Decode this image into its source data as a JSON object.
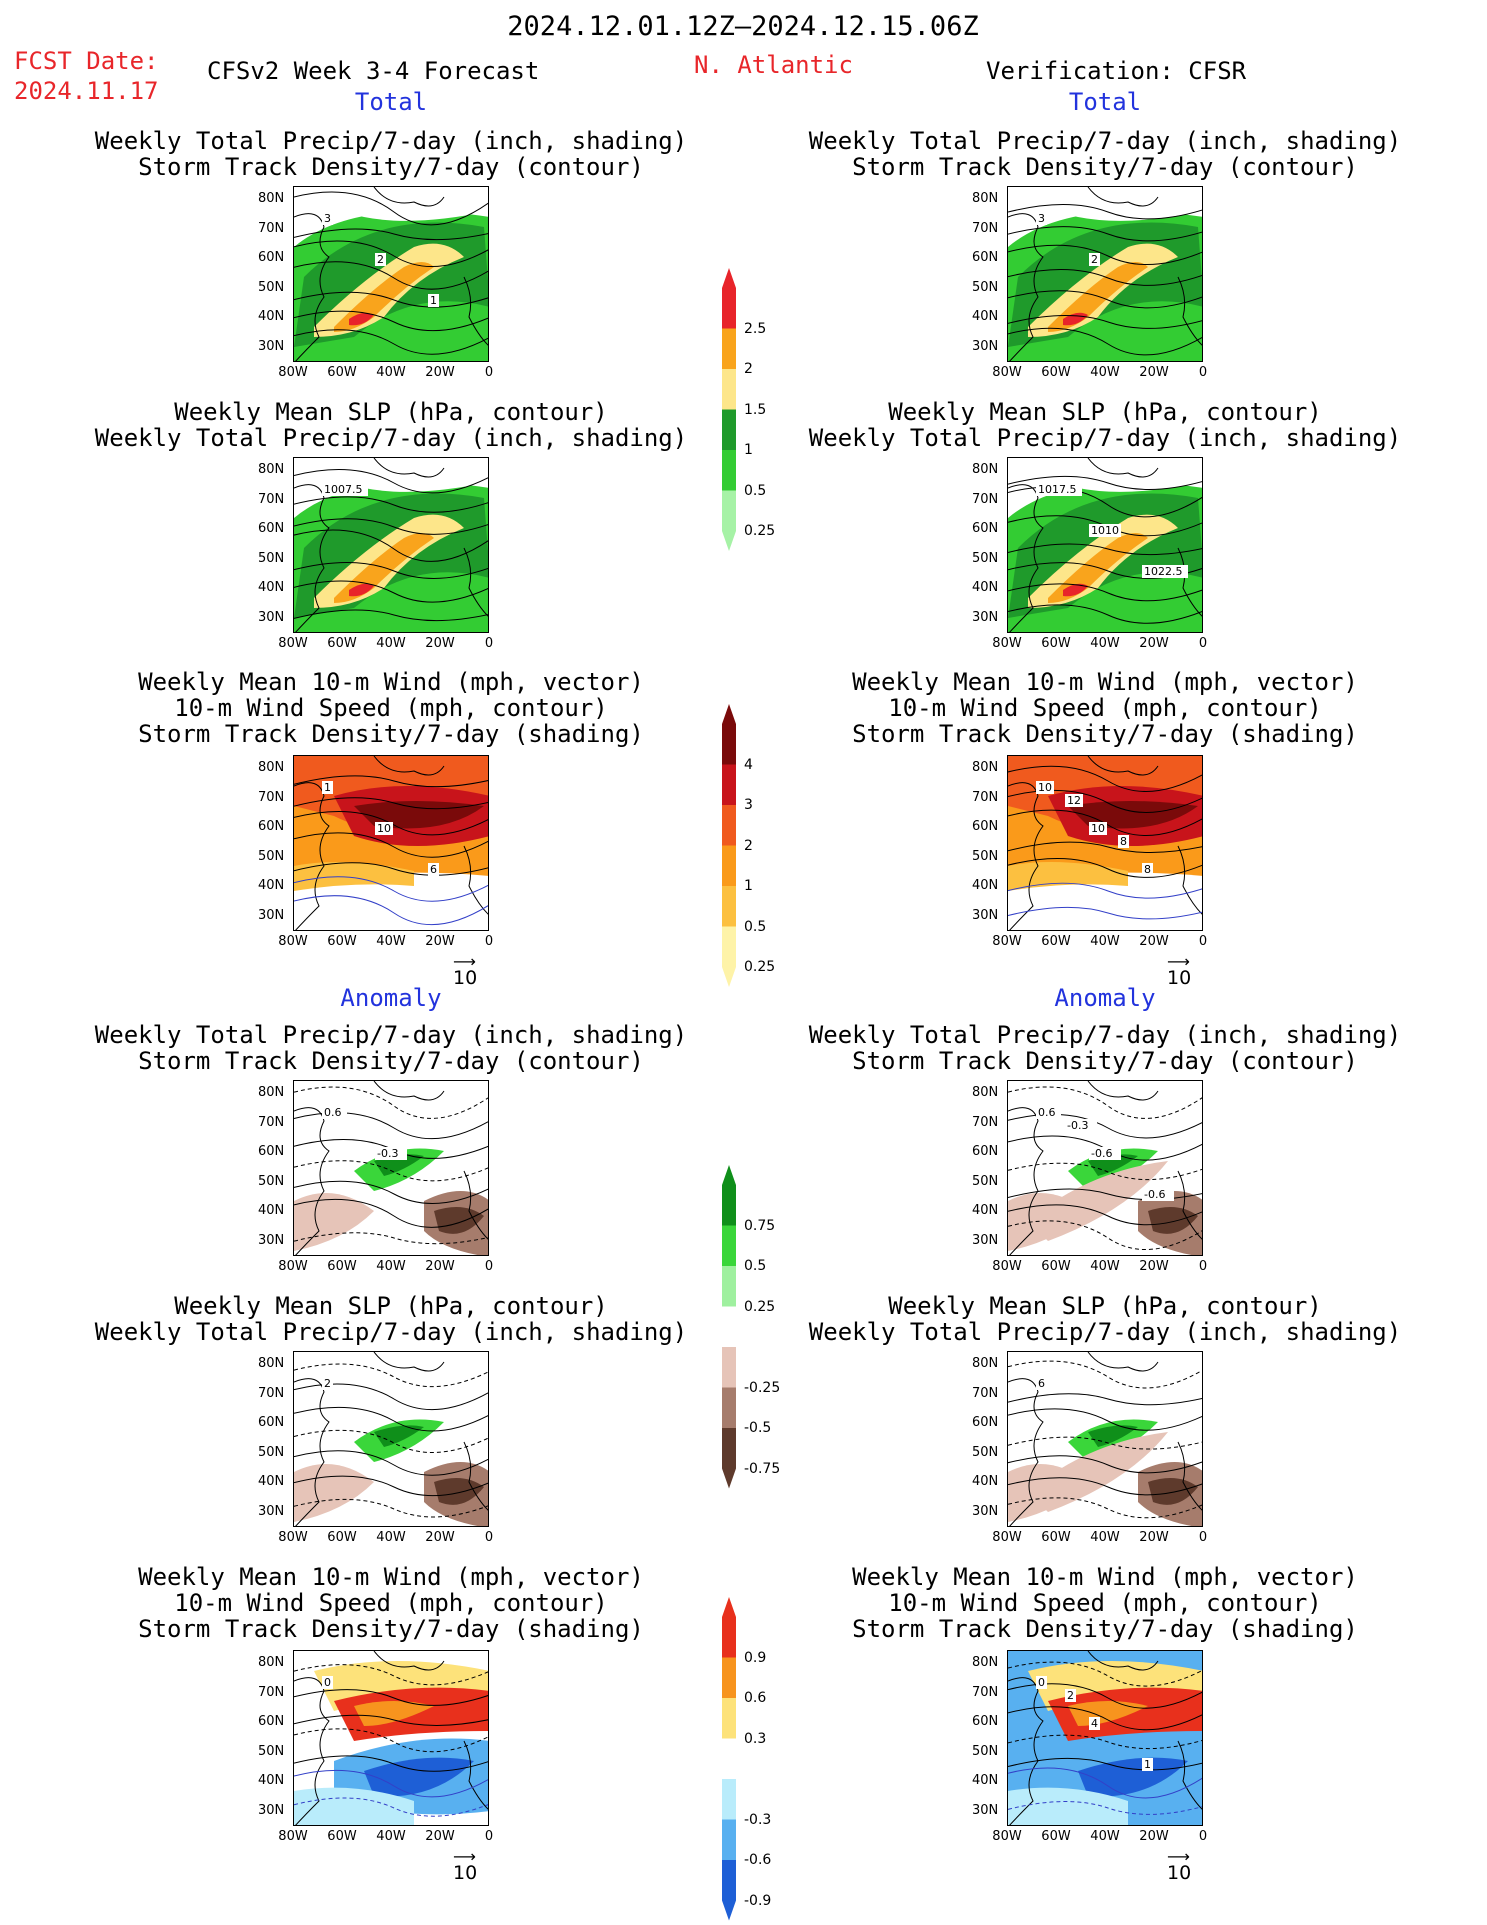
{
  "header": {
    "date_range": "2024.12.01.12Z–2024.12.15.06Z",
    "fcst_label": "FCST Date:",
    "fcst_date": "2024.11.17",
    "model": "CFSv2 Week 3-4 Forecast",
    "region": "N. Atlantic",
    "verification": "Verification: CFSR"
  },
  "sections": {
    "total": "Total",
    "anomaly": "Anomaly"
  },
  "panel_titles": {
    "precip_storm": [
      "Weekly Total Precip/7-day (inch, shading)",
      "Storm Track Density/7-day (contour)"
    ],
    "slp_precip": [
      "Weekly Mean SLP (hPa, contour)",
      "Weekly Total Precip/7-day (inch, shading)"
    ],
    "wind_storm": [
      "Weekly Mean 10-m Wind (mph, vector)",
      "10-m Wind Speed (mph, contour)",
      "Storm Track Density/7-day (shading)"
    ]
  },
  "axes": {
    "lat_ticks": [
      "80N",
      "70N",
      "60N",
      "50N",
      "40N",
      "30N"
    ],
    "lon_ticks": [
      "80W",
      "60W",
      "40W",
      "20W",
      "0"
    ]
  },
  "vector_ref": "10",
  "colorbars": {
    "precip_total": {
      "labels": [
        "2.5",
        "2",
        "1.5",
        "1",
        "0.5",
        "0.25"
      ],
      "colors": [
        "#e8242a",
        "#f9a41c",
        "#fde68a",
        "#1f9a2b",
        "#33cc33",
        "#a6f2a6"
      ]
    },
    "storm_total": {
      "labels": [
        "4",
        "3",
        "2",
        "1",
        "0.5",
        "0.25"
      ],
      "colors": [
        "#7a0a0a",
        "#c8141b",
        "#f05a1e",
        "#fa9a1a",
        "#fcc040",
        "#fef3a8"
      ]
    },
    "precip_anom": {
      "labels": [
        "0.75",
        "0.5",
        "0.25",
        "-0.25",
        "-0.5",
        "-0.75"
      ],
      "colors": [
        "#0f8f1a",
        "#3ad63a",
        "#9ff09f",
        "#ffffff",
        "#e6c4b8",
        "#a67c6c",
        "#5e3a2c"
      ]
    },
    "storm_anom": {
      "labels": [
        "0.9",
        "0.6",
        "0.3",
        "-0.3",
        "-0.6",
        "-0.9"
      ],
      "colors": [
        "#e8301c",
        "#f7941e",
        "#fde27a",
        "#ffffff",
        "#b9ecfb",
        "#58b0f0",
        "#1e5fd6"
      ]
    }
  },
  "panels": [
    {
      "id": "fc-precip-total",
      "labels": [
        "3",
        "2",
        "1"
      ]
    },
    {
      "id": "vf-precip-total",
      "labels": [
        "3",
        "2"
      ]
    },
    {
      "id": "fc-slp-total",
      "labels": [
        "1007.5"
      ]
    },
    {
      "id": "vf-slp-total",
      "labels": [
        "1017.5",
        "1010",
        "1022.5"
      ]
    },
    {
      "id": "fc-wind-total",
      "labels": [
        "1",
        "10",
        "6"
      ]
    },
    {
      "id": "vf-wind-total",
      "labels": [
        "10",
        "10",
        "8",
        "12",
        "8"
      ]
    },
    {
      "id": "fc-precip-anom",
      "labels": [
        "0.6",
        "-0.3"
      ]
    },
    {
      "id": "vf-precip-anom",
      "labels": [
        "0.6",
        "-0.6",
        "-0.6",
        "-0.3"
      ]
    },
    {
      "id": "fc-slp-anom",
      "labels": [
        "2"
      ]
    },
    {
      "id": "vf-slp-anom",
      "labels": [
        "6"
      ]
    },
    {
      "id": "fc-wind-anom",
      "labels": [
        "0"
      ]
    },
    {
      "id": "vf-wind-anom",
      "labels": [
        "0",
        "4",
        "1",
        "2"
      ]
    }
  ]
}
